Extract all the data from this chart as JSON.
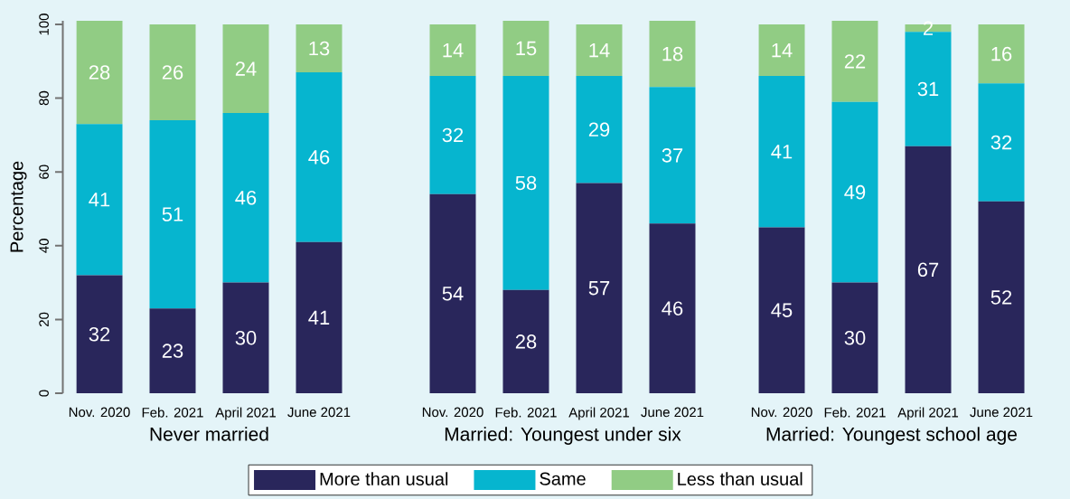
{
  "chart_data": [
    {
      "type": "bar",
      "stacked": true,
      "categories": [
        "Nov. 2020",
        "Feb. 2021",
        "April 2021",
        "June 2021"
      ],
      "xlabel": "Never married",
      "ylabel": "Percentage",
      "ylim": [
        0,
        101
      ],
      "yticks": [
        0,
        20,
        40,
        60,
        80,
        100
      ],
      "data_labels": true,
      "legend": "bottom",
      "series": [
        {
          "name": "More than usual",
          "color": "#29265b",
          "values": [
            32,
            23,
            30,
            41
          ]
        },
        {
          "name": "Same",
          "color": "#06b5cf",
          "values": [
            41,
            51,
            46,
            46
          ]
        },
        {
          "name": "Less than usual",
          "color": "#91cc84",
          "values": [
            28,
            26,
            24,
            13
          ]
        }
      ]
    },
    {
      "type": "bar",
      "stacked": true,
      "categories": [
        "Nov. 2020",
        "Feb. 2021",
        "April 2021",
        "June 2021"
      ],
      "xlabel": "Married: Youngest under six",
      "ylim": [
        0,
        101
      ],
      "tick_labels": "x",
      "data_labels": true,
      "series": [
        {
          "color": "#29265b",
          "values": [
            54,
            28,
            57,
            46
          ]
        },
        {
          "color": "#06b5cf",
          "values": [
            32,
            58,
            29,
            37
          ]
        },
        {
          "color": "#91cc84",
          "values": [
            14,
            15,
            14,
            18
          ]
        }
      ]
    },
    {
      "type": "bar",
      "stacked": true,
      "categories": [
        "Nov. 2020",
        "Feb. 2021",
        "April 2021",
        "June 2021"
      ],
      "xlabel": "Married: Youngest school age",
      "ylim": [
        0,
        101
      ],
      "tick_labels": "x",
      "data_labels": true,
      "series": [
        {
          "color": "#29265b",
          "values": [
            45,
            30,
            67,
            52
          ]
        },
        {
          "color": "#06b5cf",
          "values": [
            41,
            49,
            31,
            32
          ]
        },
        {
          "color": "#91cc84",
          "values": [
            14,
            22,
            2,
            16
          ]
        }
      ]
    }
  ]
}
